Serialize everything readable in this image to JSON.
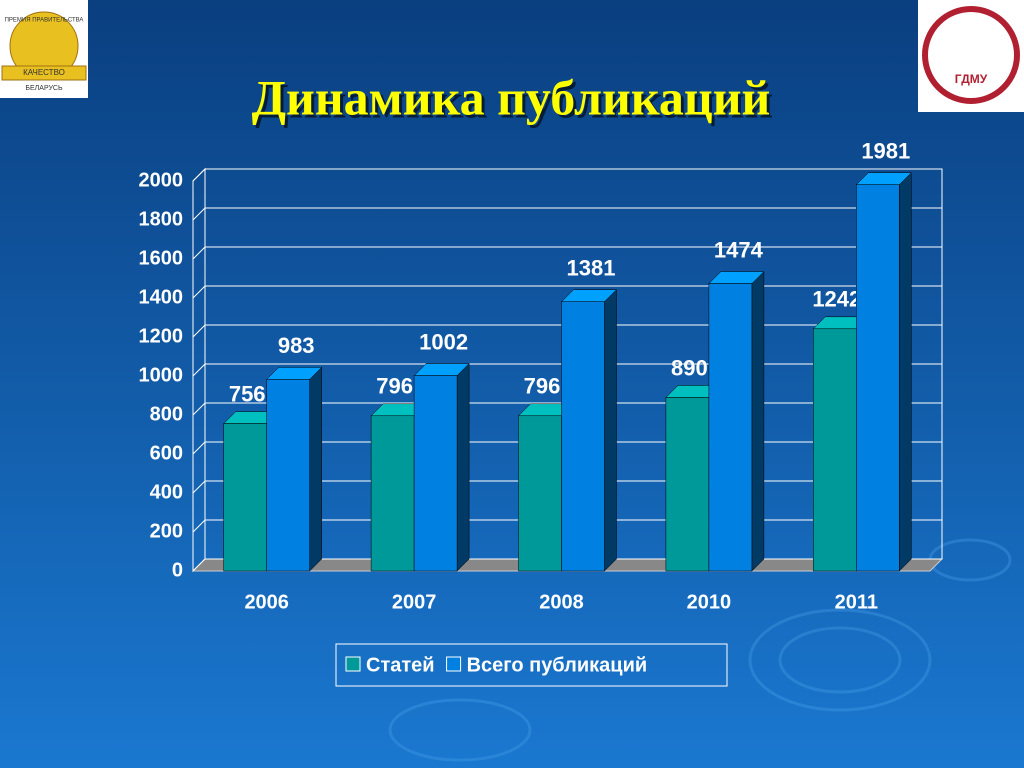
{
  "chart_data": {
    "type": "bar3d",
    "title": "Динамика публикаций",
    "categories": [
      "2006",
      "2007",
      "2008",
      "2010",
      "2011"
    ],
    "series": [
      {
        "name": "Статей",
        "color": "#009999",
        "values": [
          756,
          796,
          796,
          890,
          1242
        ]
      },
      {
        "name": "Всего публикаций",
        "color": "#0080e0",
        "values": [
          983,
          1002,
          1381,
          1474,
          1981
        ]
      }
    ],
    "ylim": [
      0,
      2000
    ],
    "yticks": [
      0,
      200,
      400,
      600,
      800,
      1000,
      1200,
      1400,
      1600,
      1800,
      2000
    ],
    "grid": true,
    "legend": "bottom"
  },
  "logos": {
    "left": {
      "top": "ПРЕМИЯ ПРАВИТЕЛЬСТВА",
      "ribbon": "КАЧЕСТВО",
      "bottom": "БЕЛАРУСЬ"
    },
    "right": {
      "label": "ГДМУ"
    }
  }
}
